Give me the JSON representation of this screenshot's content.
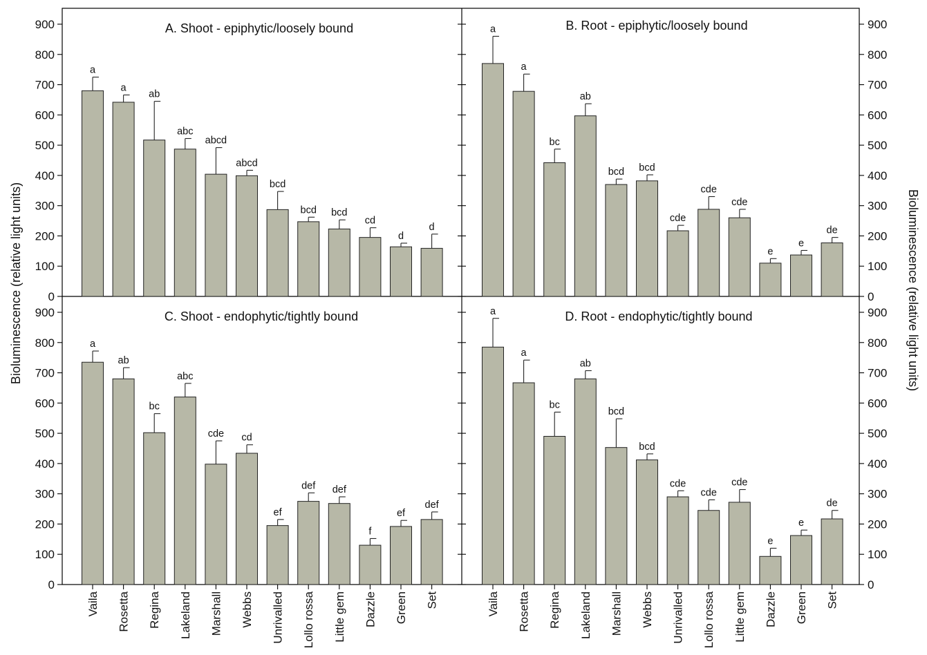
{
  "chart_data": {
    "type": "bar",
    "ylabel": "Bioluminescence (relative light units)",
    "ylim": [
      0,
      900
    ],
    "yticks": [
      0,
      100,
      200,
      300,
      400,
      500,
      600,
      700,
      800,
      900
    ],
    "categories": [
      "Vaila",
      "Rosetta",
      "Regina",
      "Lakeland",
      "Marshall",
      "Webbs",
      "Unrivalled",
      "Lollo rossa",
      "Little gem",
      "Dazzle",
      "Green",
      "Set"
    ],
    "bar_color": "#b7b8a7",
    "panels": [
      {
        "id": "A",
        "title": "A.  Shoot - epiphytic/loosely bound",
        "values": [
          680,
          642,
          517,
          487,
          404,
          399,
          287,
          247,
          223,
          195,
          164,
          159
        ],
        "errors": [
          45,
          24,
          128,
          35,
          88,
          18,
          60,
          15,
          30,
          32,
          12,
          47
        ],
        "letters": [
          "a",
          "a",
          "ab",
          "abc",
          "abcd",
          "abcd",
          "bcd",
          "bcd",
          "bcd",
          "cd",
          "d",
          "d"
        ]
      },
      {
        "id": "B",
        "title": "B.  Root - epiphytic/loosely bound",
        "values": [
          770,
          678,
          442,
          597,
          370,
          382,
          217,
          288,
          260,
          110,
          137,
          177
        ],
        "errors": [
          90,
          57,
          45,
          40,
          18,
          20,
          18,
          42,
          28,
          15,
          15,
          18
        ],
        "letters": [
          "a",
          "a",
          "bc",
          "ab",
          "bcd",
          "bcd",
          "cde",
          "cde",
          "cde",
          "e",
          "e",
          "de"
        ]
      },
      {
        "id": "C",
        "title": "C.  Shoot - endophytic/tightly bound",
        "values": [
          735,
          680,
          502,
          620,
          398,
          434,
          195,
          275,
          268,
          130,
          192,
          215
        ],
        "errors": [
          37,
          37,
          63,
          45,
          77,
          28,
          20,
          28,
          22,
          22,
          20,
          25
        ],
        "letters": [
          "a",
          "ab",
          "bc",
          "abc",
          "cde",
          "cd",
          "ef",
          "def",
          "def",
          "f",
          "ef",
          "def"
        ]
      },
      {
        "id": "D",
        "title": "D.  Root - endophytic/tightly bound",
        "values": [
          785,
          667,
          490,
          680,
          453,
          412,
          290,
          245,
          272,
          93,
          162,
          217
        ],
        "errors": [
          95,
          75,
          80,
          27,
          95,
          20,
          20,
          35,
          42,
          27,
          18,
          28
        ],
        "letters": [
          "a",
          "a",
          "bc",
          "ab",
          "bcd",
          "bcd",
          "cde",
          "cde",
          "cde",
          "e",
          "e",
          "de"
        ]
      }
    ]
  }
}
